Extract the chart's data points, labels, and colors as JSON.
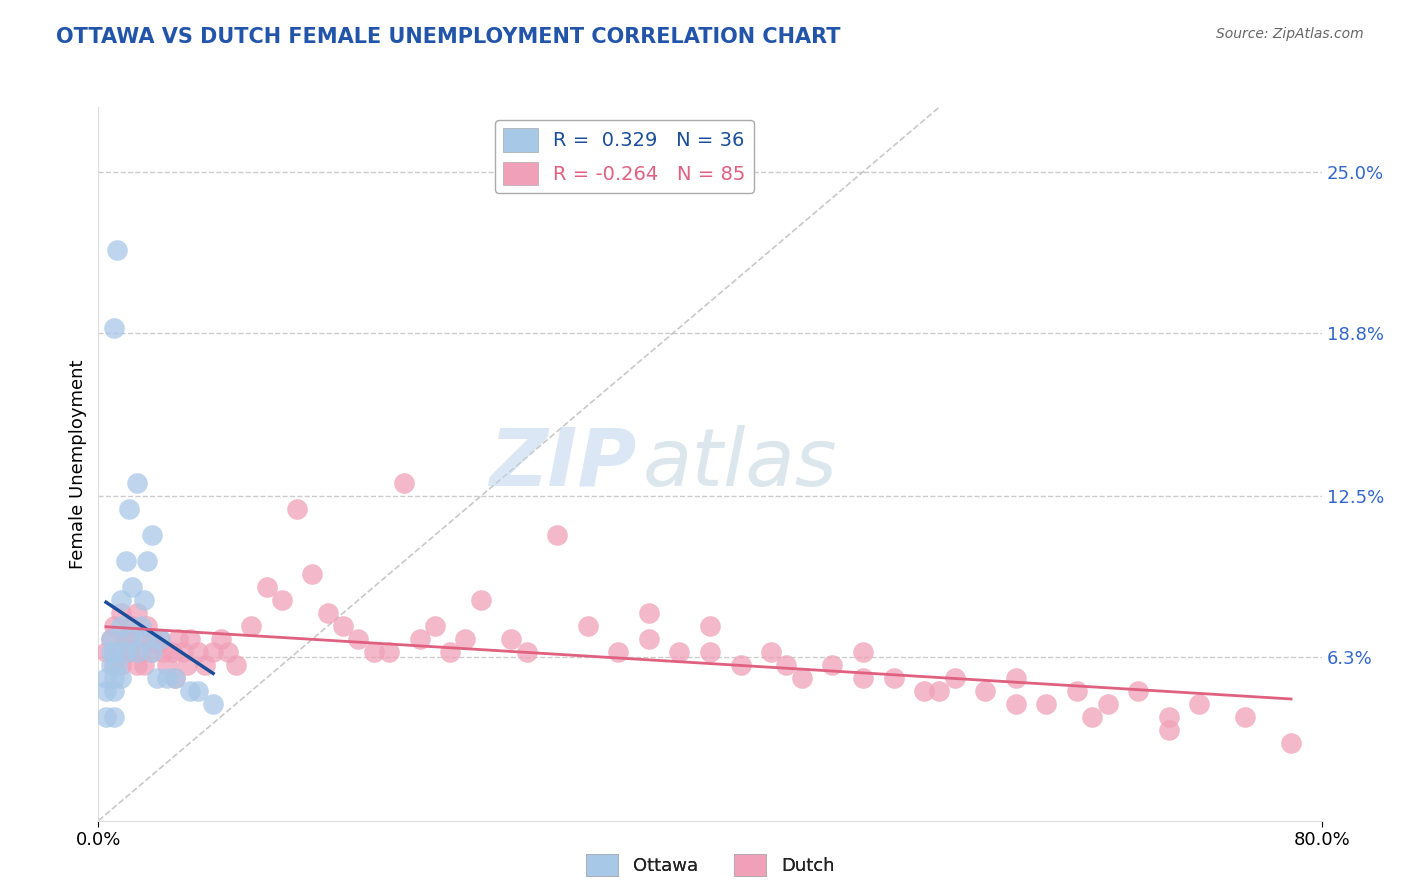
{
  "title": "OTTAWA VS DUTCH FEMALE UNEMPLOYMENT CORRELATION CHART",
  "source": "Source: ZipAtlas.com",
  "ylabel": "Female Unemployment",
  "xlim": [
    0.0,
    0.8
  ],
  "ylim": [
    0.0,
    0.275
  ],
  "ytick_labels": [
    "",
    "6.3%",
    "12.5%",
    "18.8%",
    "25.0%"
  ],
  "ytick_vals": [
    0.0,
    0.063,
    0.125,
    0.188,
    0.25
  ],
  "xtick_labels": [
    "0.0%",
    "80.0%"
  ],
  "xtick_vals": [
    0.0,
    0.8
  ],
  "title_color": "#2255AA",
  "source_color": "#666666",
  "ottawa_color": "#A8C8E8",
  "dutch_color": "#F0A0B8",
  "ottawa_line_color": "#1A4E9A",
  "dutch_line_color": "#E06080",
  "ottawa_R": 0.329,
  "ottawa_N": 36,
  "dutch_R": -0.264,
  "dutch_N": 85,
  "watermark_zip": "ZIP",
  "watermark_atlas": "atlas",
  "background_color": "#FFFFFF",
  "grid_color": "#CCCCCC",
  "ottawa_scatter_x": [
    0.005,
    0.005,
    0.005,
    0.008,
    0.008,
    0.008,
    0.01,
    0.01,
    0.01,
    0.01,
    0.01,
    0.012,
    0.012,
    0.015,
    0.015,
    0.015,
    0.018,
    0.018,
    0.02,
    0.02,
    0.022,
    0.025,
    0.025,
    0.028,
    0.03,
    0.03,
    0.032,
    0.035,
    0.035,
    0.038,
    0.04,
    0.045,
    0.05,
    0.06,
    0.065,
    0.075
  ],
  "ottawa_scatter_y": [
    0.04,
    0.05,
    0.055,
    0.06,
    0.065,
    0.07,
    0.04,
    0.05,
    0.055,
    0.065,
    0.19,
    0.06,
    0.22,
    0.055,
    0.075,
    0.085,
    0.065,
    0.1,
    0.07,
    0.12,
    0.09,
    0.065,
    0.13,
    0.075,
    0.07,
    0.085,
    0.1,
    0.065,
    0.11,
    0.055,
    0.07,
    0.055,
    0.055,
    0.05,
    0.05,
    0.045
  ],
  "dutch_scatter_x": [
    0.005,
    0.008,
    0.01,
    0.01,
    0.012,
    0.015,
    0.015,
    0.018,
    0.02,
    0.02,
    0.022,
    0.025,
    0.025,
    0.028,
    0.03,
    0.03,
    0.032,
    0.035,
    0.035,
    0.038,
    0.04,
    0.042,
    0.045,
    0.048,
    0.05,
    0.052,
    0.055,
    0.058,
    0.06,
    0.065,
    0.07,
    0.075,
    0.08,
    0.085,
    0.09,
    0.1,
    0.11,
    0.12,
    0.13,
    0.14,
    0.15,
    0.16,
    0.17,
    0.18,
    0.19,
    0.2,
    0.21,
    0.22,
    0.23,
    0.24,
    0.25,
    0.27,
    0.28,
    0.3,
    0.32,
    0.34,
    0.36,
    0.38,
    0.4,
    0.42,
    0.44,
    0.46,
    0.48,
    0.5,
    0.52,
    0.54,
    0.56,
    0.58,
    0.6,
    0.62,
    0.64,
    0.66,
    0.68,
    0.7,
    0.72,
    0.36,
    0.4,
    0.45,
    0.5,
    0.55,
    0.6,
    0.65,
    0.7,
    0.75,
    0.78
  ],
  "dutch_scatter_y": [
    0.065,
    0.07,
    0.06,
    0.075,
    0.065,
    0.06,
    0.08,
    0.07,
    0.065,
    0.07,
    0.075,
    0.06,
    0.08,
    0.065,
    0.06,
    0.07,
    0.075,
    0.065,
    0.07,
    0.068,
    0.07,
    0.065,
    0.06,
    0.065,
    0.055,
    0.07,
    0.065,
    0.06,
    0.07,
    0.065,
    0.06,
    0.065,
    0.07,
    0.065,
    0.06,
    0.075,
    0.09,
    0.085,
    0.12,
    0.095,
    0.08,
    0.075,
    0.07,
    0.065,
    0.065,
    0.13,
    0.07,
    0.075,
    0.065,
    0.07,
    0.085,
    0.07,
    0.065,
    0.11,
    0.075,
    0.065,
    0.07,
    0.065,
    0.075,
    0.06,
    0.065,
    0.055,
    0.06,
    0.065,
    0.055,
    0.05,
    0.055,
    0.05,
    0.055,
    0.045,
    0.05,
    0.045,
    0.05,
    0.04,
    0.045,
    0.08,
    0.065,
    0.06,
    0.055,
    0.05,
    0.045,
    0.04,
    0.035,
    0.04,
    0.03
  ]
}
